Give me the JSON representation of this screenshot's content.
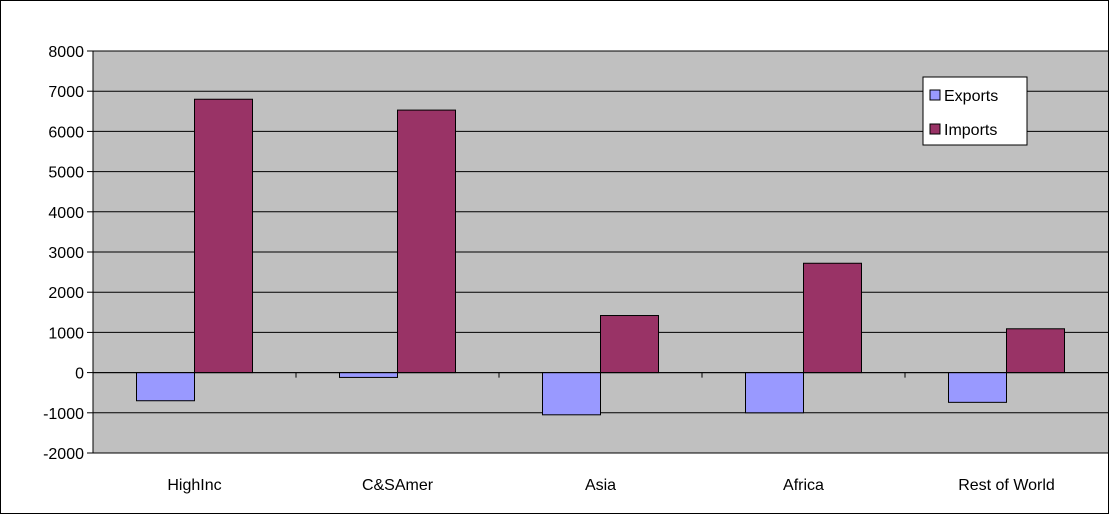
{
  "chart_data": {
    "type": "bar",
    "title": "",
    "xlabel": "",
    "ylabel": "",
    "categories": [
      "HighInc",
      "C&SAmer",
      "Asia",
      "Africa",
      "Rest of World"
    ],
    "series": [
      {
        "name": "Exports",
        "values": [
          -700,
          -120,
          -1050,
          -1000,
          -740
        ],
        "color": "#9999ff"
      },
      {
        "name": "Imports",
        "values": [
          6800,
          6530,
          1420,
          2720,
          1090
        ],
        "color": "#993366"
      }
    ],
    "ylim": [
      -2000,
      8000
    ],
    "yticks": [
      "8000",
      "7000",
      "6000",
      "5000",
      "4000",
      "3000",
      "2000",
      "1000",
      "0",
      "-1000",
      "-2000"
    ],
    "grid": true,
    "plot_background": "#c0c0c0",
    "legend_position": "top-right"
  }
}
